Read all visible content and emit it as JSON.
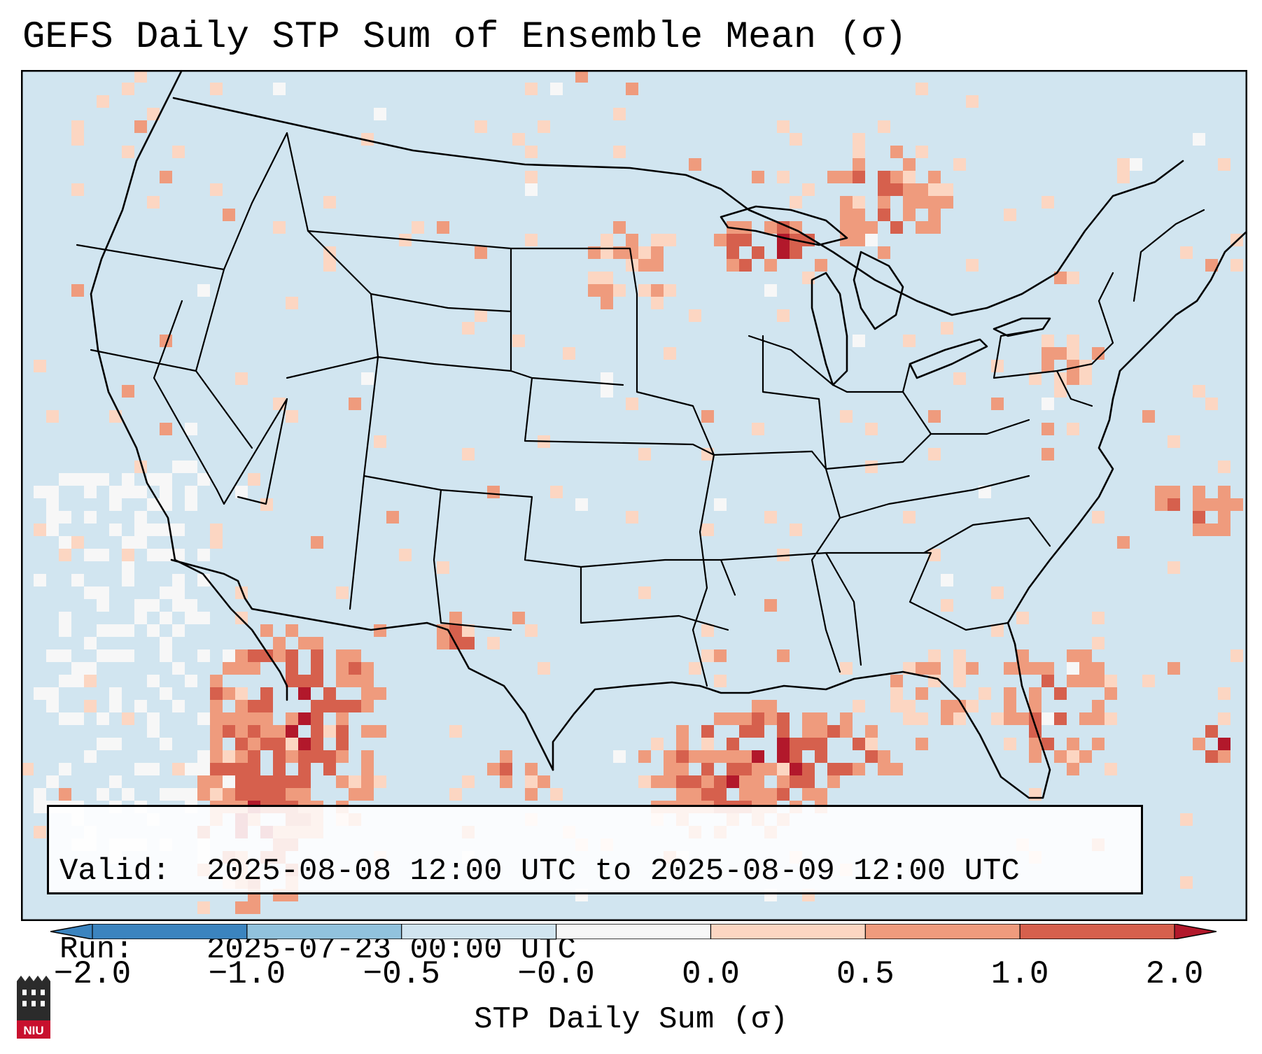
{
  "title": "GEFS Daily STP Sum of Ensemble Mean (σ)",
  "info": {
    "valid_label": "Valid:",
    "valid_value": "2025-08-08 12:00 UTC to 2025-08-09 12:00 UTC",
    "run_label": "Run:",
    "run_value": "2025-07-23 00:00 UTC"
  },
  "colorbar": {
    "label": "STP Daily Sum (σ)",
    "ticks": [
      "−2.0",
      "−1.0",
      "−0.5",
      "−0.0",
      "0.0",
      "0.5",
      "1.0",
      "2.0"
    ],
    "colors": [
      "#3b84bf",
      "#91c2dd",
      "#d1e5f0",
      "#f7f7f7",
      "#fcd6c2",
      "#ef9b7d",
      "#d6604d",
      "#b2182b"
    ],
    "extend": "both"
  },
  "map": {
    "region": "Continental United States",
    "background_color": "#d1e5f0",
    "highlighted_areas": [
      {
        "name": "Sonora / northwest Mexico",
        "intensity": 2.0
      },
      {
        "name": "Northern Gulf of Mexico",
        "intensity": 2.0
      },
      {
        "name": "Upper Michigan / Lake Superior",
        "intensity": 1.5
      },
      {
        "name": "Northwestern Ontario",
        "intensity": 1.5
      },
      {
        "name": "Pennsylvania / New York",
        "intensity": 0.8
      },
      {
        "name": "Florida peninsula / Atlantic coast",
        "intensity": 1.0
      }
    ]
  },
  "logo": {
    "text": "NIU",
    "color": "#c8102e"
  }
}
